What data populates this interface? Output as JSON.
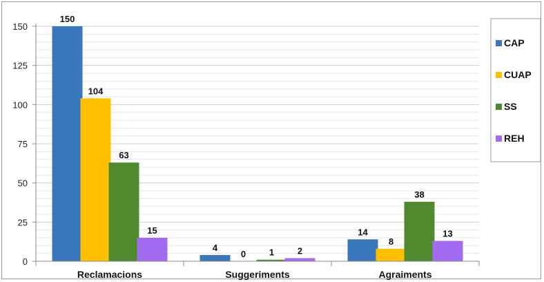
{
  "chart_data": {
    "type": "bar",
    "title": "",
    "xlabel": "",
    "ylabel": "",
    "categories": [
      "Reclamacions",
      "Suggeriments",
      "Agraiments"
    ],
    "series": [
      {
        "name": "CAP",
        "values": [
          150,
          4,
          14
        ],
        "color": "#3a76bb"
      },
      {
        "name": "CUAP",
        "values": [
          104,
          0,
          8
        ],
        "color": "#ffc000"
      },
      {
        "name": "SS",
        "values": [
          63,
          1,
          38
        ],
        "color": "#4f8a2f"
      },
      {
        "name": "REH",
        "values": [
          15,
          2,
          13
        ],
        "color": "#a36cf0"
      }
    ],
    "ylim": [
      0,
      150
    ],
    "yticks": [
      0,
      25,
      50,
      75,
      100,
      125,
      150
    ],
    "grid": true,
    "legend_position": "right"
  }
}
